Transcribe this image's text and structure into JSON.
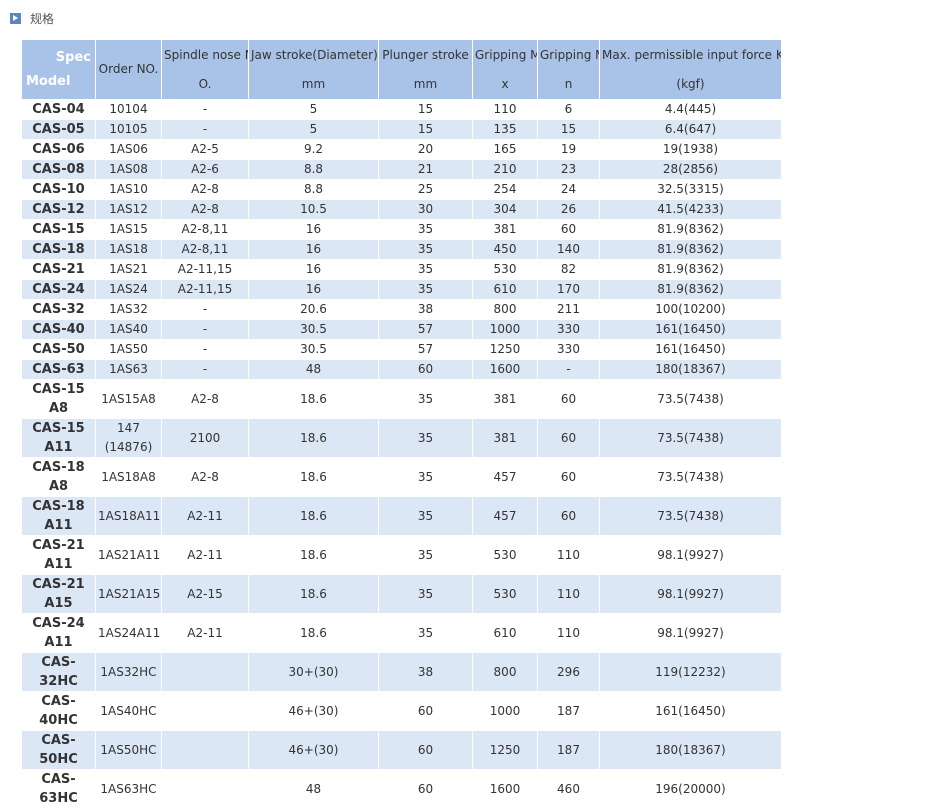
{
  "section_title": "规格",
  "table": {
    "header": [
      [
        "Spec",
        "Model"
      ],
      [
        "Order NO."
      ],
      [
        "Spindle nose N",
        "O."
      ],
      [
        "Jaw stroke(Diameter)",
        "mm"
      ],
      [
        "Plunger stroke",
        "mm"
      ],
      [
        "Gripping Ma",
        "x"
      ],
      [
        "Gripping Mi",
        "n"
      ],
      [
        "Max. permissible input force KN",
        "(kgf)"
      ]
    ],
    "rows": [
      [
        "CAS-04",
        "10104",
        "-",
        "5",
        "15",
        "110",
        "6",
        "4.4(445)"
      ],
      [
        "CAS-05",
        "10105",
        "-",
        "5",
        "15",
        "135",
        "15",
        "6.4(647)"
      ],
      [
        "CAS-06",
        "1AS06",
        "A2-5",
        "9.2",
        "20",
        "165",
        "19",
        "19(1938)"
      ],
      [
        "CAS-08",
        "1AS08",
        "A2-6",
        "8.8",
        "21",
        "210",
        "23",
        "28(2856)"
      ],
      [
        "CAS-10",
        "1AS10",
        "A2-8",
        "8.8",
        "25",
        "254",
        "24",
        "32.5(3315)"
      ],
      [
        "CAS-12",
        "1AS12",
        "A2-8",
        "10.5",
        "30",
        "304",
        "26",
        "41.5(4233)"
      ],
      [
        "CAS-15",
        "1AS15",
        "A2-8,11",
        "16",
        "35",
        "381",
        "60",
        "81.9(8362)"
      ],
      [
        "CAS-18",
        "1AS18",
        "A2-8,11",
        "16",
        "35",
        "450",
        "140",
        "81.9(8362)"
      ],
      [
        "CAS-21",
        "1AS21",
        "A2-11,15",
        "16",
        "35",
        "530",
        "82",
        "81.9(8362)"
      ],
      [
        "CAS-24",
        "1AS24",
        "A2-11,15",
        "16",
        "35",
        "610",
        "170",
        "81.9(8362)"
      ],
      [
        "CAS-32",
        "1AS32",
        "-",
        "20.6",
        "38",
        "800",
        "211",
        "100(10200)"
      ],
      [
        "CAS-40",
        "1AS40",
        "-",
        "30.5",
        "57",
        "1000",
        "330",
        "161(16450)"
      ],
      [
        "CAS-50",
        "1AS50",
        "-",
        "30.5",
        "57",
        "1250",
        "330",
        "161(16450)"
      ],
      [
        "CAS-63",
        "1AS63",
        "-",
        "48",
        "60",
        "1600",
        "-",
        "180(18367)"
      ],
      [
        "CAS-15 A8",
        "1AS15A8",
        "A2-8",
        "18.6",
        "35",
        "381",
        "60",
        "73.5(7438)"
      ],
      [
        "CAS-15 A11",
        "147 (14876)",
        "2100",
        "18.6",
        "35",
        "381",
        "60",
        "73.5(7438)"
      ],
      [
        "CAS-18 A8",
        "1AS18A8",
        "A2-8",
        "18.6",
        "35",
        "457",
        "60",
        "73.5(7438)"
      ],
      [
        "CAS-18 A11",
        "1AS18A11",
        "A2-11",
        "18.6",
        "35",
        "457",
        "60",
        "73.5(7438)"
      ],
      [
        "CAS-21 A11",
        "1AS21A11",
        "A2-11",
        "18.6",
        "35",
        "530",
        "110",
        "98.1(9927)"
      ],
      [
        "CAS-21 A15",
        "1AS21A15",
        "A2-15",
        "18.6",
        "35",
        "530",
        "110",
        "98.1(9927)"
      ],
      [
        "CAS-24 A11",
        "1AS24A11",
        "A2-11",
        "18.6",
        "35",
        "610",
        "110",
        "98.1(9927)"
      ],
      [
        "CAS-32HC",
        "1AS32HC",
        null,
        "30+(30)",
        "38",
        "800",
        "296",
        "119(12232)"
      ],
      [
        "CAS-40HC",
        "1AS40HC",
        null,
        "46+(30)",
        "60",
        "1000",
        "187",
        "161(16450)"
      ],
      [
        "CAS-50HC",
        "1AS50HC",
        null,
        "46+(30)",
        "60",
        "1250",
        "187",
        "180(18367)"
      ],
      [
        "CAS-63HC",
        "1AS63HC",
        null,
        "48",
        "60",
        "1600",
        "460",
        "196(20000)"
      ]
    ]
  }
}
